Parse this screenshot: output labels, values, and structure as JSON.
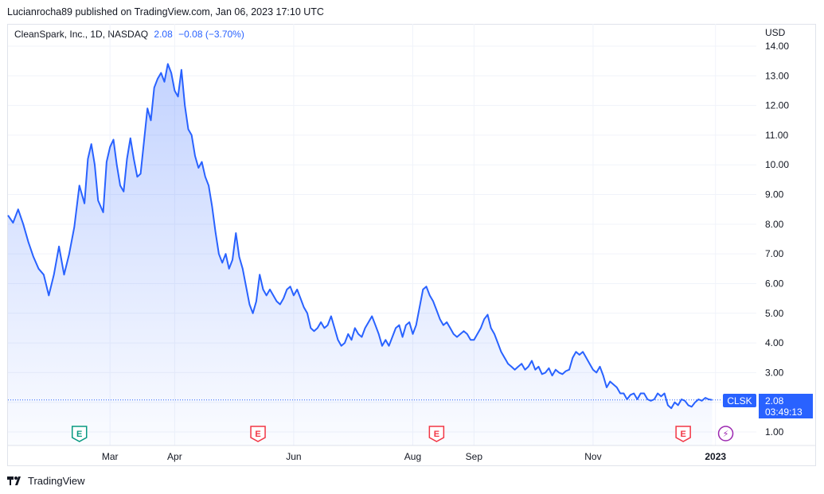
{
  "publisher": "Lucianrocha89 published on TradingView.com, Jan 06, 2023 17:10 UTC",
  "symbol": {
    "name": "CleanSpark, Inc., 1D, NASDAQ",
    "price": "2.08",
    "change": "−0.08 (−3.70%)"
  },
  "currency": "USD",
  "brand": "TradingView",
  "price_tag": {
    "ticker": "CLSK",
    "price": "2.08",
    "countdown": "03:49:13"
  },
  "colors": {
    "line": "#2962ff",
    "earnings_past": "#089981",
    "earnings_future": "#f23645",
    "dividend": "#9c27b0"
  },
  "events": [
    {
      "type": "earnings",
      "label": "E",
      "status": "reported",
      "x": 42
    },
    {
      "type": "earnings",
      "label": "E",
      "status": "upcoming",
      "x": 147
    },
    {
      "type": "earnings",
      "label": "E",
      "status": "upcoming",
      "x": 252
    },
    {
      "type": "earnings",
      "label": "E",
      "status": "upcoming",
      "x": 397
    },
    {
      "type": "split",
      "label": "⚡",
      "x": 422
    }
  ],
  "chart_data": {
    "type": "area",
    "x_unit": "trading day",
    "xlim": [
      0,
      440
    ],
    "ylim": [
      0.5,
      14.5
    ],
    "y_ticks": [
      1,
      2,
      3,
      4,
      5,
      6,
      7,
      8,
      9,
      10,
      11,
      12,
      13,
      14
    ],
    "y_tick_labels": [
      "1.00",
      "3.00",
      "4.00",
      "5.00",
      "6.00",
      "7.00",
      "8.00",
      "9.00",
      "10.00",
      "11.00",
      "12.00",
      "13.00",
      "14.00"
    ],
    "y_label_values": [
      1,
      3,
      4,
      5,
      6,
      7,
      8,
      9,
      10,
      11,
      12,
      13,
      14
    ],
    "x_ticks": [
      {
        "x": 60,
        "label": "Mar"
      },
      {
        "x": 98,
        "label": "Apr"
      },
      {
        "x": 168,
        "label": "Jun"
      },
      {
        "x": 238,
        "label": "Aug"
      },
      {
        "x": 274,
        "label": "Sep"
      },
      {
        "x": 344,
        "label": "Nov"
      },
      {
        "x": 416,
        "label": "2023"
      }
    ],
    "last_value": 2.08,
    "series": [
      {
        "values": [
          [
            0,
            8.3
          ],
          [
            3,
            8.05
          ],
          [
            6,
            8.5
          ],
          [
            9,
            8.0
          ],
          [
            12,
            7.4
          ],
          [
            15,
            6.9
          ],
          [
            18,
            6.5
          ],
          [
            21,
            6.3
          ],
          [
            24,
            5.6
          ],
          [
            27,
            6.3
          ],
          [
            30,
            7.25
          ],
          [
            33,
            6.3
          ],
          [
            36,
            7.0
          ],
          [
            39,
            7.9
          ],
          [
            42,
            9.3
          ],
          [
            45,
            8.7
          ],
          [
            47,
            10.2
          ],
          [
            49,
            10.7
          ],
          [
            51,
            10.0
          ],
          [
            53,
            8.8
          ],
          [
            56,
            8.4
          ],
          [
            58,
            10.1
          ],
          [
            60,
            10.6
          ],
          [
            62,
            10.85
          ],
          [
            64,
            10.0
          ],
          [
            66,
            9.3
          ],
          [
            68,
            9.1
          ],
          [
            70,
            10.2
          ],
          [
            72,
            10.9
          ],
          [
            74,
            10.2
          ],
          [
            76,
            9.6
          ],
          [
            78,
            9.7
          ],
          [
            80,
            10.8
          ],
          [
            82,
            11.9
          ],
          [
            84,
            11.5
          ],
          [
            86,
            12.6
          ],
          [
            88,
            12.9
          ],
          [
            90,
            13.1
          ],
          [
            92,
            12.8
          ],
          [
            94,
            13.4
          ],
          [
            96,
            13.1
          ],
          [
            98,
            12.5
          ],
          [
            100,
            12.3
          ],
          [
            102,
            13.2
          ],
          [
            104,
            12.0
          ],
          [
            106,
            11.2
          ],
          [
            108,
            11.0
          ],
          [
            110,
            10.3
          ],
          [
            112,
            9.9
          ],
          [
            114,
            10.1
          ],
          [
            116,
            9.6
          ],
          [
            118,
            9.3
          ],
          [
            120,
            8.6
          ],
          [
            122,
            7.75
          ],
          [
            124,
            7.0
          ],
          [
            126,
            6.7
          ],
          [
            128,
            7.0
          ],
          [
            130,
            6.5
          ],
          [
            132,
            6.8
          ],
          [
            134,
            7.7
          ],
          [
            136,
            6.9
          ],
          [
            138,
            6.5
          ],
          [
            140,
            5.9
          ],
          [
            142,
            5.3
          ],
          [
            144,
            5.0
          ],
          [
            146,
            5.4
          ],
          [
            148,
            6.3
          ],
          [
            150,
            5.8
          ],
          [
            152,
            5.6
          ],
          [
            154,
            5.8
          ],
          [
            156,
            5.6
          ],
          [
            158,
            5.4
          ],
          [
            160,
            5.3
          ],
          [
            162,
            5.5
          ],
          [
            164,
            5.8
          ],
          [
            166,
            5.9
          ],
          [
            168,
            5.6
          ],
          [
            170,
            5.8
          ],
          [
            172,
            5.5
          ],
          [
            174,
            5.2
          ],
          [
            176,
            5.0
          ],
          [
            178,
            4.5
          ],
          [
            180,
            4.4
          ],
          [
            182,
            4.5
          ],
          [
            184,
            4.7
          ],
          [
            186,
            4.5
          ],
          [
            188,
            4.6
          ],
          [
            190,
            4.9
          ],
          [
            192,
            4.5
          ],
          [
            194,
            4.1
          ],
          [
            196,
            3.9
          ],
          [
            198,
            4.0
          ],
          [
            200,
            4.3
          ],
          [
            202,
            4.1
          ],
          [
            204,
            4.5
          ],
          [
            206,
            4.3
          ],
          [
            208,
            4.2
          ],
          [
            210,
            4.5
          ],
          [
            212,
            4.7
          ],
          [
            214,
            4.9
          ],
          [
            216,
            4.6
          ],
          [
            218,
            4.3
          ],
          [
            220,
            3.9
          ],
          [
            222,
            4.1
          ],
          [
            224,
            3.9
          ],
          [
            226,
            4.2
          ],
          [
            228,
            4.5
          ],
          [
            230,
            4.6
          ],
          [
            232,
            4.2
          ],
          [
            234,
            4.6
          ],
          [
            236,
            4.7
          ],
          [
            238,
            4.3
          ],
          [
            240,
            4.6
          ],
          [
            242,
            5.2
          ],
          [
            244,
            5.8
          ],
          [
            246,
            5.9
          ],
          [
            248,
            5.6
          ],
          [
            250,
            5.4
          ],
          [
            252,
            5.1
          ],
          [
            254,
            4.8
          ],
          [
            256,
            4.6
          ],
          [
            258,
            4.7
          ],
          [
            260,
            4.5
          ],
          [
            262,
            4.3
          ],
          [
            264,
            4.2
          ],
          [
            266,
            4.3
          ],
          [
            268,
            4.4
          ],
          [
            270,
            4.3
          ],
          [
            272,
            4.1
          ],
          [
            274,
            4.1
          ],
          [
            276,
            4.3
          ],
          [
            278,
            4.5
          ],
          [
            280,
            4.8
          ],
          [
            282,
            4.95
          ],
          [
            284,
            4.5
          ],
          [
            286,
            4.3
          ],
          [
            288,
            4.0
          ],
          [
            290,
            3.7
          ],
          [
            292,
            3.5
          ],
          [
            294,
            3.3
          ],
          [
            296,
            3.2
          ],
          [
            298,
            3.1
          ],
          [
            300,
            3.2
          ],
          [
            302,
            3.3
          ],
          [
            304,
            3.1
          ],
          [
            306,
            3.2
          ],
          [
            308,
            3.4
          ],
          [
            310,
            3.1
          ],
          [
            312,
            3.2
          ],
          [
            314,
            2.95
          ],
          [
            316,
            3.0
          ],
          [
            318,
            3.15
          ],
          [
            320,
            2.9
          ],
          [
            322,
            3.1
          ],
          [
            324,
            3.0
          ],
          [
            326,
            2.95
          ],
          [
            328,
            3.05
          ],
          [
            330,
            3.1
          ],
          [
            332,
            3.5
          ],
          [
            334,
            3.7
          ],
          [
            336,
            3.6
          ],
          [
            338,
            3.7
          ],
          [
            340,
            3.5
          ],
          [
            342,
            3.3
          ],
          [
            344,
            3.1
          ],
          [
            346,
            3.0
          ],
          [
            348,
            3.2
          ],
          [
            350,
            2.9
          ],
          [
            352,
            2.5
          ],
          [
            354,
            2.7
          ],
          [
            356,
            2.6
          ],
          [
            358,
            2.5
          ],
          [
            360,
            2.3
          ],
          [
            362,
            2.3
          ],
          [
            364,
            2.1
          ],
          [
            366,
            2.25
          ],
          [
            368,
            2.3
          ],
          [
            370,
            2.1
          ],
          [
            372,
            2.3
          ],
          [
            374,
            2.3
          ],
          [
            376,
            2.1
          ],
          [
            378,
            2.05
          ],
          [
            380,
            2.1
          ],
          [
            382,
            2.3
          ],
          [
            384,
            2.2
          ],
          [
            386,
            2.3
          ],
          [
            388,
            1.9
          ],
          [
            390,
            1.8
          ],
          [
            392,
            2.0
          ],
          [
            394,
            1.9
          ],
          [
            396,
            2.1
          ],
          [
            398,
            2.05
          ],
          [
            400,
            1.9
          ],
          [
            402,
            1.85
          ],
          [
            404,
            2.0
          ],
          [
            406,
            2.1
          ],
          [
            408,
            2.05
          ],
          [
            410,
            2.15
          ],
          [
            412,
            2.1
          ],
          [
            414,
            2.08
          ]
        ]
      }
    ]
  }
}
